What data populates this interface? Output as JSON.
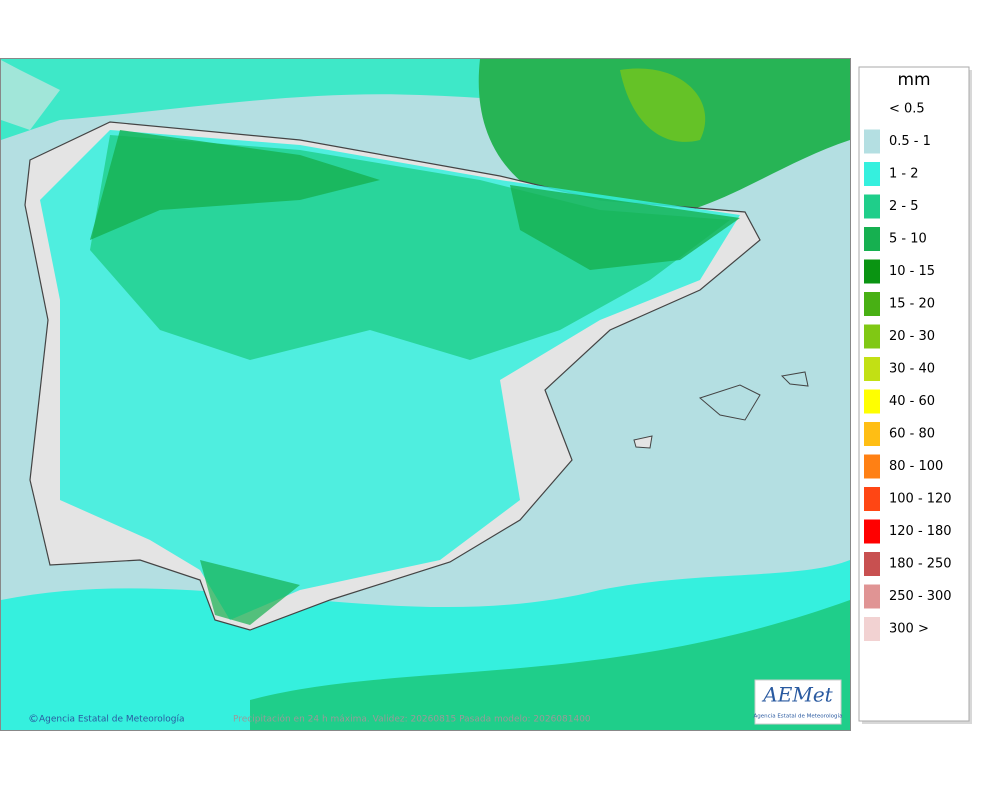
{
  "legend": {
    "title": "mm",
    "items": [
      {
        "label": "< 0.5",
        "color": "#ffffff"
      },
      {
        "label": "0.5 - 1",
        "color": "#b4dfe2"
      },
      {
        "label": "1 - 2",
        "color": "#35f0de"
      },
      {
        "label": "2 - 5",
        "color": "#1fce8a"
      },
      {
        "label": "5 - 10",
        "color": "#16b050"
      },
      {
        "label": "10 - 15",
        "color": "#0a9412"
      },
      {
        "label": "15 - 20",
        "color": "#48b014"
      },
      {
        "label": "20 - 30",
        "color": "#80c814"
      },
      {
        "label": "30 - 40",
        "color": "#c2e014"
      },
      {
        "label": "40 - 60",
        "color": "#ffff00"
      },
      {
        "label": "60 - 80",
        "color": "#ffbe14"
      },
      {
        "label": "80 - 100",
        "color": "#ff8014"
      },
      {
        "label": "100 - 120",
        "color": "#ff4614"
      },
      {
        "label": "120 - 180",
        "color": "#ff0000"
      },
      {
        "label": "180 - 250",
        "color": "#c85050"
      },
      {
        "label": "250 - 300",
        "color": "#e09494"
      },
      {
        "label": "300 >",
        "color": "#f2d2d2"
      }
    ]
  },
  "footer": {
    "credit": "Agencia Estatal de Meteorología",
    "caption": "Precipitación en 24 h máxima. Validez: 20260815 Pasada modelo: 2026081400"
  },
  "logo": {
    "name": "AEMet",
    "subtitle": "Agencia Estatal de Meteorología"
  }
}
